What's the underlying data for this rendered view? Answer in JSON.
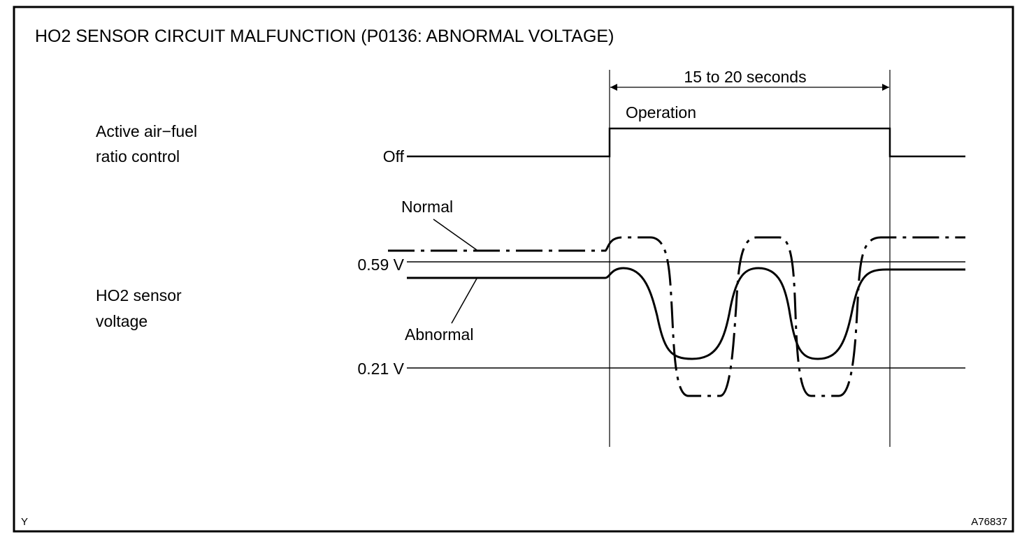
{
  "title": "HO2 SENSOR CIRCUIT MALFUNCTION (P0136: ABNORMAL VOLTAGE)",
  "timing": {
    "duration_label": "15 to 20 seconds",
    "operation_label": "Operation",
    "off_label": "Off"
  },
  "signals": {
    "control": {
      "label_line1": "Active air−fuel",
      "label_line2": "ratio control"
    },
    "sensor": {
      "label_line1": "HO2 sensor",
      "label_line2": "voltage"
    }
  },
  "levels": {
    "upper": "0.59 V",
    "lower": "0.21 V"
  },
  "traces": {
    "normal": "Normal",
    "abnormal": "Abnormal"
  },
  "footer": {
    "corner_code": "Y",
    "figure_id": "A76837"
  },
  "colors": {
    "line": "#000000",
    "background": "#ffffff"
  }
}
